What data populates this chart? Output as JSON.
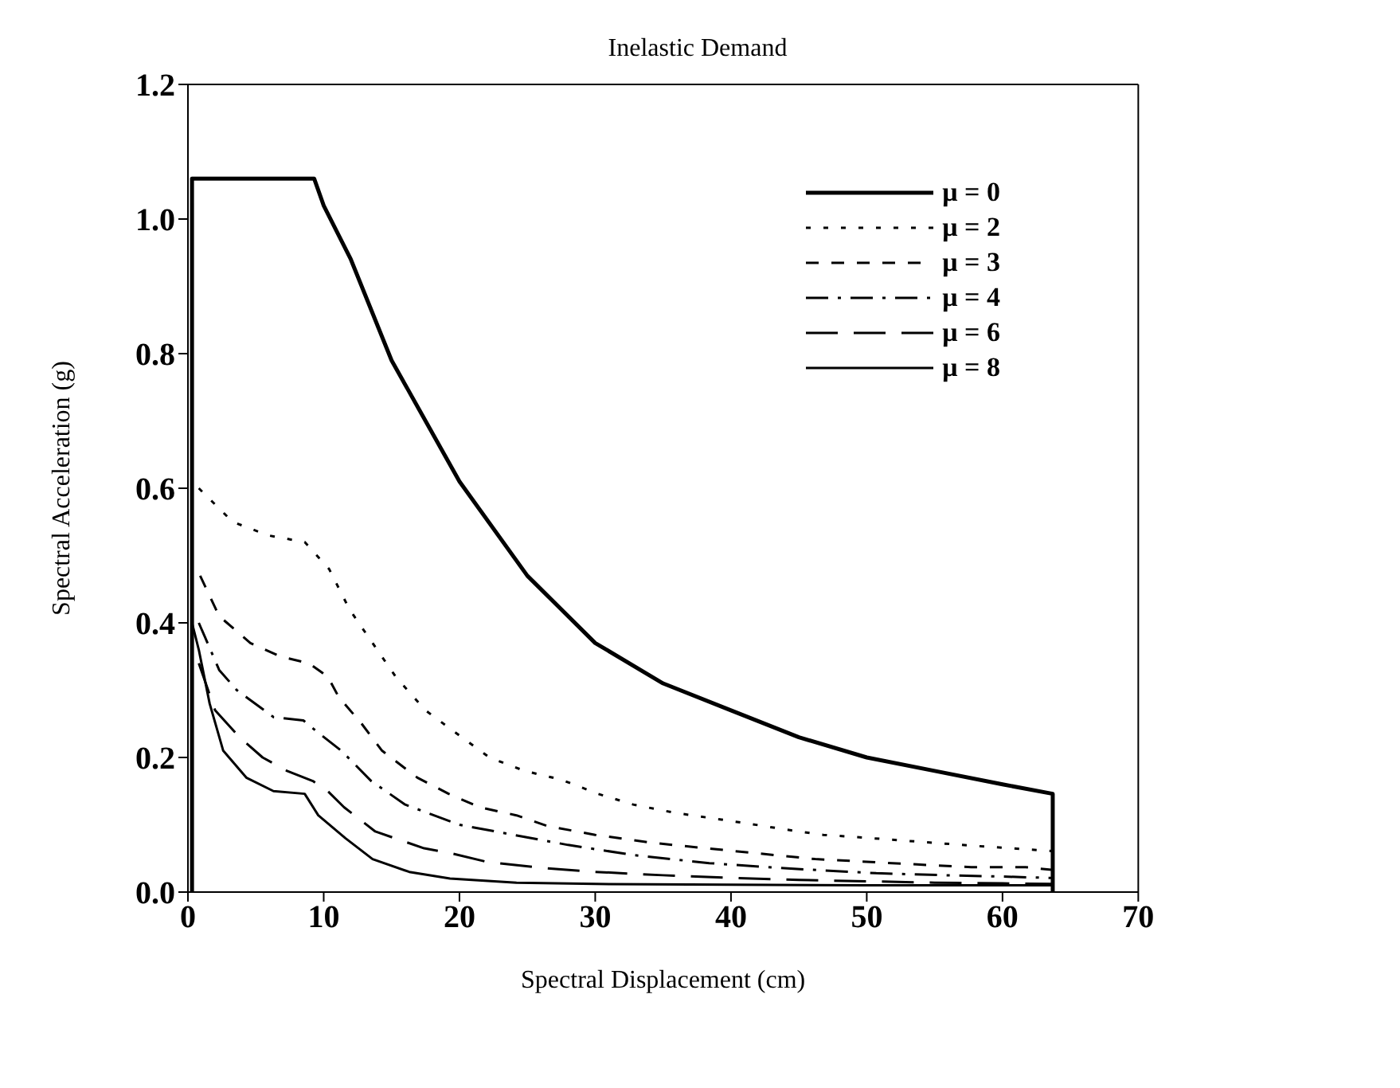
{
  "chart_data": {
    "type": "line",
    "title": "Inelastic Demand",
    "xlabel": "Spectral Displacement (cm)",
    "ylabel": "Spectral Acceleration (g)",
    "xlim": [
      0,
      70
    ],
    "xticks": [
      0,
      10,
      20,
      30,
      40,
      50,
      60,
      70
    ],
    "ylim": [
      0,
      1.2
    ],
    "yticks": [
      {
        "value": 0,
        "label": "0.0"
      },
      {
        "value": 0.2,
        "label": "0.2"
      },
      {
        "value": 0.4,
        "label": "0.4"
      },
      {
        "value": 0.6,
        "label": "0.6"
      },
      {
        "value": 0.8,
        "label": "0.8"
      },
      {
        "value": 1,
        "label": "1.0"
      },
      {
        "value": 1.2,
        "label": "1.2"
      }
    ],
    "legend": "top right",
    "marker": "none",
    "series": [
      {
        "name": "μ = 0",
        "color": "#000000",
        "line_style": "solid",
        "x": [
          0.3,
          0.3,
          9.3,
          10,
          12,
          15,
          20,
          25,
          30,
          35,
          40,
          45,
          50,
          55,
          60,
          63.7,
          63.7
        ],
        "values": [
          0,
          1.06,
          1.06,
          1.02,
          0.94,
          0.79,
          0.61,
          0.47,
          0.37,
          0.31,
          0.27,
          0.23,
          0.2,
          0.18,
          0.16,
          0.146,
          0
        ]
      },
      {
        "name": "μ = 2",
        "color": "#000000",
        "line_style": "dotted",
        "x": [
          0.8,
          3.3,
          5.9,
          8.6,
          10.4,
          11.9,
          13.6,
          15.3,
          17.5,
          19.5,
          22.2,
          24.8,
          27.5,
          30.2,
          32.8,
          35.8,
          38.5,
          41.2,
          44,
          46.8,
          49.7,
          52.4,
          55.1,
          57.7,
          60.7,
          63.6
        ],
        "values": [
          0.6,
          0.55,
          0.53,
          0.52,
          0.48,
          0.42,
          0.37,
          0.32,
          0.27,
          0.24,
          0.2,
          0.18,
          0.167,
          0.146,
          0.13,
          0.118,
          0.11,
          0.102,
          0.093,
          0.085,
          0.081,
          0.077,
          0.073,
          0.069,
          0.065,
          0.061
        ]
      },
      {
        "name": "μ = 3",
        "color": "#000000",
        "line_style": "dashed",
        "x": [
          0.9,
          2.3,
          4.6,
          6.8,
          8.9,
          10.3,
          11.1,
          12.8,
          14.3,
          16.9,
          19.2,
          21.5,
          24.2,
          26.5,
          30,
          34.3,
          38.2,
          42.2,
          46.2,
          50,
          53.7,
          57.7,
          61.7,
          63.6
        ],
        "values": [
          0.47,
          0.41,
          0.37,
          0.35,
          0.34,
          0.32,
          0.29,
          0.25,
          0.21,
          0.17,
          0.146,
          0.126,
          0.114,
          0.098,
          0.085,
          0.073,
          0.065,
          0.057,
          0.049,
          0.045,
          0.041,
          0.037,
          0.037,
          0.033
        ]
      },
      {
        "name": "μ = 4",
        "color": "#000000",
        "line_style": "dashed",
        "x": [
          0.8,
          2.3,
          3.6,
          6.3,
          8.5,
          9.4,
          11.3,
          13.5,
          16,
          18,
          20,
          24,
          28,
          32.8,
          38.4,
          42.7,
          46.9,
          50.7,
          55.7,
          60,
          63.6
        ],
        "values": [
          0.4,
          0.33,
          0.3,
          0.26,
          0.255,
          0.24,
          0.21,
          0.165,
          0.13,
          0.115,
          0.1,
          0.085,
          0.07,
          0.055,
          0.043,
          0.037,
          0.032,
          0.028,
          0.025,
          0.023,
          0.021
        ]
      },
      {
        "name": "μ = 6",
        "color": "#000000",
        "line_style": "dashed",
        "x": [
          0.8,
          2,
          3.8,
          5.5,
          7.3,
          9.2,
          10.3,
          11.5,
          13.8,
          17.4,
          19.5,
          22,
          26,
          30,
          35,
          40,
          45,
          50,
          55,
          60,
          63.6
        ],
        "values": [
          0.34,
          0.27,
          0.23,
          0.2,
          0.18,
          0.165,
          0.15,
          0.126,
          0.09,
          0.065,
          0.057,
          0.045,
          0.036,
          0.03,
          0.025,
          0.021,
          0.018,
          0.016,
          0.014,
          0.013,
          0.012
        ]
      },
      {
        "name": "μ = 8",
        "color": "#000000",
        "line_style": "solid",
        "x": [
          0.3,
          0.8,
          1.6,
          2.6,
          4.3,
          6.3,
          8.6,
          9.6,
          11.6,
          13.6,
          16.3,
          19.3,
          24.2,
          30,
          40,
          50,
          60,
          63.6
        ],
        "values": [
          0.4,
          0.36,
          0.28,
          0.21,
          0.17,
          0.15,
          0.146,
          0.114,
          0.08,
          0.049,
          0.03,
          0.02,
          0.014,
          0.012,
          0.011,
          0.01,
          0.01,
          0.01
        ]
      }
    ]
  }
}
